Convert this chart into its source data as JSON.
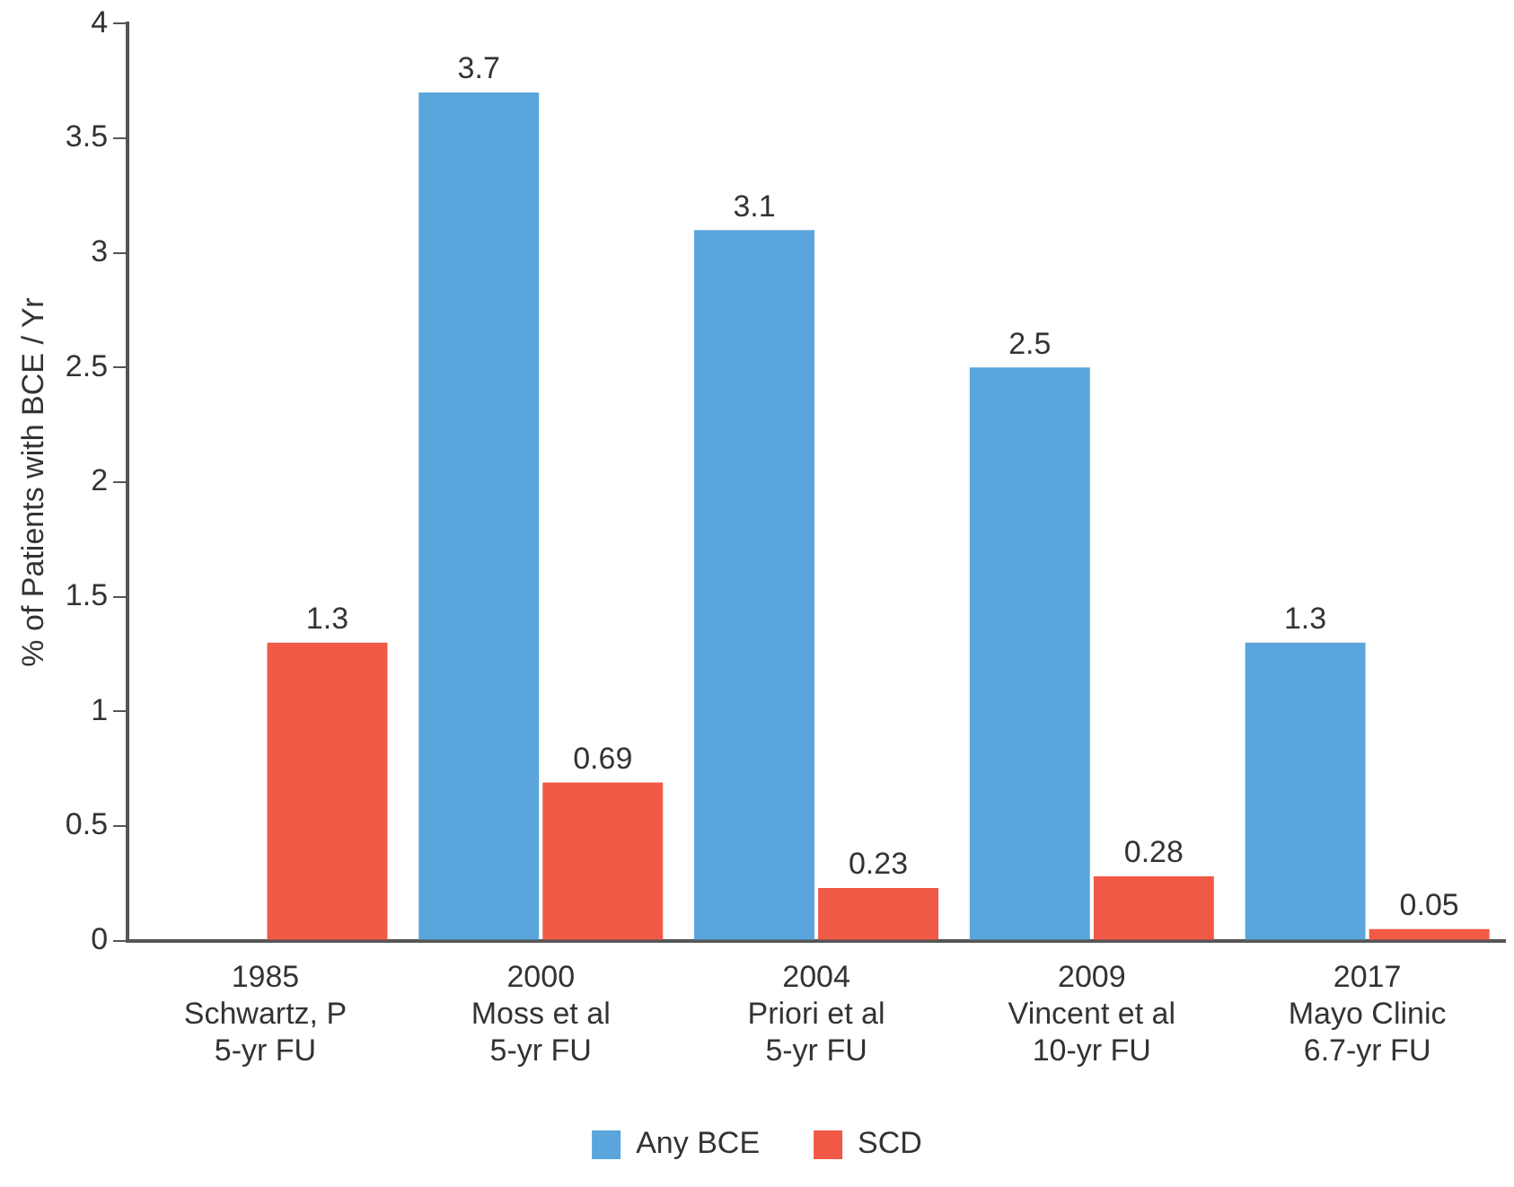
{
  "chart_data": {
    "type": "bar",
    "ylabel": "% of Patients with BCE / Yr",
    "categories": [
      "1985\nSchwartz, P\n5-yr FU",
      "2000\nMoss et al\n5-yr FU",
      "2004\nPriori et al\n5-yr FU",
      "2009\nVincent et al\n10-yr FU",
      "2017\nMayo Clinic\n6.7-yr FU"
    ],
    "series": [
      {
        "name": "Any BCE",
        "color": "#5aa5dc",
        "values": [
          null,
          3.7,
          3.1,
          2.5,
          1.3
        ]
      },
      {
        "name": "SCD",
        "color": "#f05a46",
        "values": [
          1.3,
          0.69,
          0.23,
          0.28,
          0.05
        ]
      }
    ],
    "ylim": [
      0,
      4
    ],
    "yticks": [
      0,
      0.5,
      1,
      1.5,
      2,
      2.5,
      3,
      3.5,
      4
    ],
    "grid": false,
    "legend": "bottom",
    "data_labels": true
  }
}
